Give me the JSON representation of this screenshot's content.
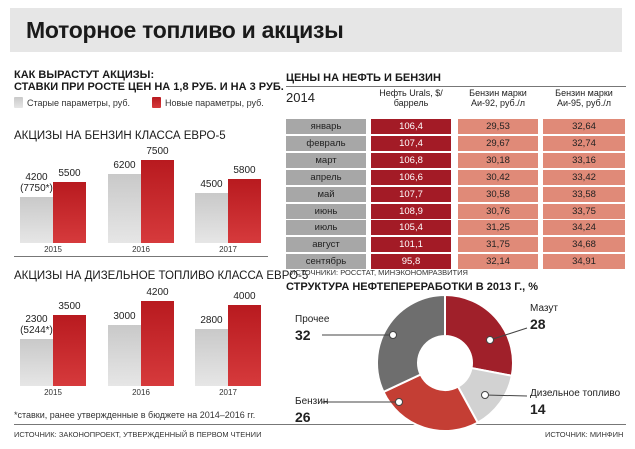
{
  "title": "Моторное топливо и акцизы",
  "left": {
    "heading_line1": "КАК ВЫРАСТУТ АКЦИЗЫ:",
    "heading_line2": "СТАВКИ ПРИ РОСТЕ ЦЕН НА 1,8 РУБ. И НА 3 РУБ.",
    "legend_old": "Старые параметры, руб.",
    "legend_new": "Новые параметры, руб.",
    "footnote": "*ставки, ранее утвержденные в бюджете на 2014–2016 гг.",
    "source": "ИСТОЧНИК: ЗАКОНОПРОЕКТ, УТВЕРЖДЕННЫЙ В ПЕРВОМ ЧТЕНИИ"
  },
  "colors": {
    "old": "#cccccc",
    "new": "#c42126",
    "oil": "#a31b26",
    "ai": "#e08a78",
    "month": "#a7a7a7"
  },
  "chart_data": [
    {
      "type": "bar",
      "title": "АКЦИЗЫ НА БЕНЗИН КЛАССА ЕВРО-5",
      "categories": [
        "2015",
        "2016",
        "2017"
      ],
      "series": [
        {
          "name": "Старые параметры, руб.",
          "values": [
            4200,
            6200,
            4500
          ],
          "labels": [
            "4200",
            "6200",
            "4500"
          ],
          "sublabels": [
            "(7750*)",
            "",
            ""
          ]
        },
        {
          "name": "Новые параметры, руб.",
          "values": [
            5500,
            7500,
            5800
          ],
          "labels": [
            "5500",
            "7500",
            "5800"
          ]
        }
      ]
    },
    {
      "type": "bar",
      "title": "АКЦИЗЫ НА ДИЗЕЛЬНОЕ ТОПЛИВО КЛАССА ЕВРО-5",
      "categories": [
        "2015",
        "2016",
        "2017"
      ],
      "series": [
        {
          "name": "Старые параметры, руб.",
          "values": [
            2300,
            3000,
            2800
          ],
          "labels": [
            "2300",
            "3000",
            "2800"
          ],
          "sublabels": [
            "(5244*)",
            "",
            ""
          ]
        },
        {
          "name": "Новые параметры, руб.",
          "values": [
            3500,
            4200,
            4000
          ],
          "labels": [
            "3500",
            "4200",
            "4000"
          ]
        }
      ]
    },
    {
      "type": "table",
      "title": "ЦЕНЫ НА НЕФТЬ И БЕНЗИН",
      "year": "2014",
      "columns": [
        "Нефть Urals, $/баррель",
        "Бензин марки Аи-92, руб./л",
        "Бензин марки Аи-95, руб./л"
      ],
      "rows": [
        {
          "month": "январь",
          "values": [
            "106,4",
            "29,53",
            "32,64"
          ]
        },
        {
          "month": "февраль",
          "values": [
            "107,4",
            "29,67",
            "32,74"
          ]
        },
        {
          "month": "март",
          "values": [
            "106,8",
            "30,18",
            "33,16"
          ]
        },
        {
          "month": "апрель",
          "values": [
            "106,6",
            "30,42",
            "33,42"
          ]
        },
        {
          "month": "май",
          "values": [
            "107,7",
            "30,58",
            "33,58"
          ]
        },
        {
          "month": "июнь",
          "values": [
            "108,9",
            "30,76",
            "33,75"
          ]
        },
        {
          "month": "июль",
          "values": [
            "105,4",
            "31,25",
            "34,24"
          ]
        },
        {
          "month": "август",
          "values": [
            "101,1",
            "31,75",
            "34,68"
          ]
        },
        {
          "month": "сентябрь",
          "values": [
            "95,8",
            "32,14",
            "34,91"
          ]
        }
      ],
      "source": "ИСТОЧНИКИ: РОССТАТ, МИНЭКОНОМРАЗВИТИЯ"
    },
    {
      "type": "pie",
      "title": "СТРУКТУРА НЕФТЕПЕРЕРАБОТКИ В 2013 Г., %",
      "slices": [
        {
          "label": "Мазут",
          "value": 28,
          "color": "#a0202a"
        },
        {
          "label": "Дизельное топливо",
          "value": 14,
          "color": "#d2d2d2"
        },
        {
          "label": "Бензин",
          "value": 26,
          "color": "#c43e34"
        },
        {
          "label": "Прочее",
          "value": 32,
          "color": "#6e6e6e"
        }
      ],
      "source": "ИСТОЧНИК: МИНФИН"
    }
  ]
}
